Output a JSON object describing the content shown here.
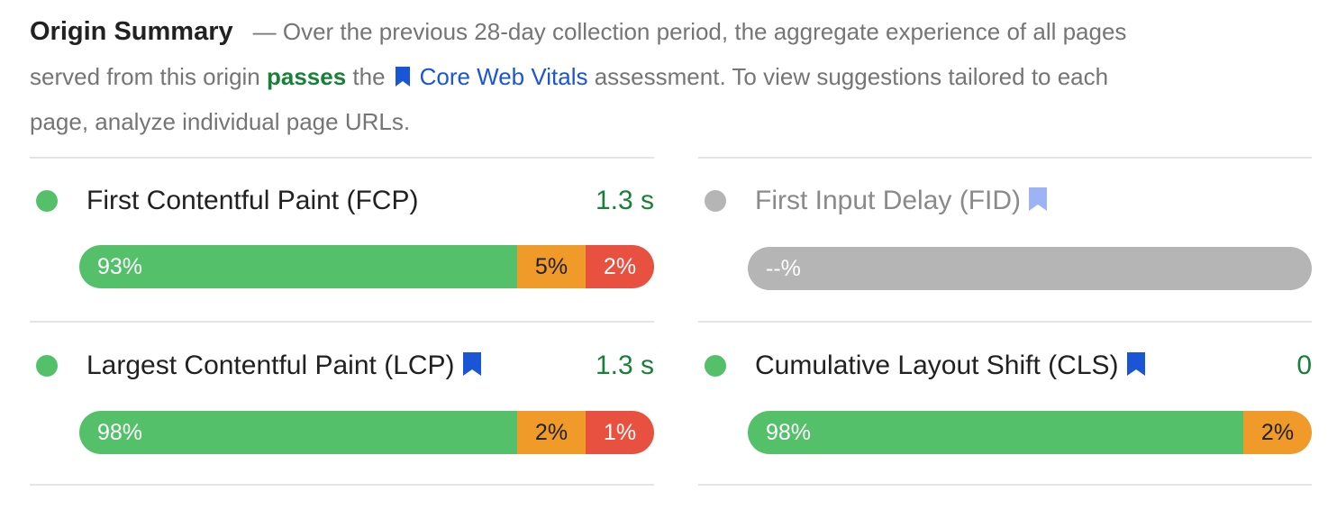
{
  "summary": {
    "title": "Origin Summary",
    "line1_text": "— Over the previous 28-day collection period, the aggregate experience of all pages",
    "line2_pre": "served from this origin",
    "line2_status": "passes",
    "line2_the": "the",
    "link_label": "Core Web Vitals",
    "line2_post": "assessment. To view suggestions tailored to each",
    "line3_text": "page, analyze individual page URLs."
  },
  "colors": {
    "good": "#54c06a",
    "needs_improvement": "#f09a29",
    "poor": "#e8503f",
    "no_data": "#b5b5b5",
    "link": "#1a55d6",
    "pass_text": "#188038"
  },
  "icons": {
    "bookmark": "bookmark-icon",
    "status": "status-dot"
  },
  "metrics": [
    {
      "name": "First Contentful Paint (FCP)",
      "value": "1.3 s",
      "status": "good",
      "core_web_vital": false,
      "distribution": {
        "good": "93%",
        "needs_improvement": "5%",
        "poor": "2%"
      }
    },
    {
      "name": "First Input Delay (FID)",
      "value": "",
      "status": "no_data",
      "core_web_vital": true,
      "distribution": {
        "no_data": "--%"
      }
    },
    {
      "name": "Largest Contentful Paint (LCP)",
      "value": "1.3 s",
      "status": "good",
      "core_web_vital": true,
      "distribution": {
        "good": "98%",
        "needs_improvement": "2%",
        "poor": "1%"
      }
    },
    {
      "name": "Cumulative Layout Shift (CLS)",
      "value": "0",
      "status": "good",
      "core_web_vital": true,
      "distribution": {
        "good": "98%",
        "needs_improvement": "2%"
      }
    }
  ]
}
